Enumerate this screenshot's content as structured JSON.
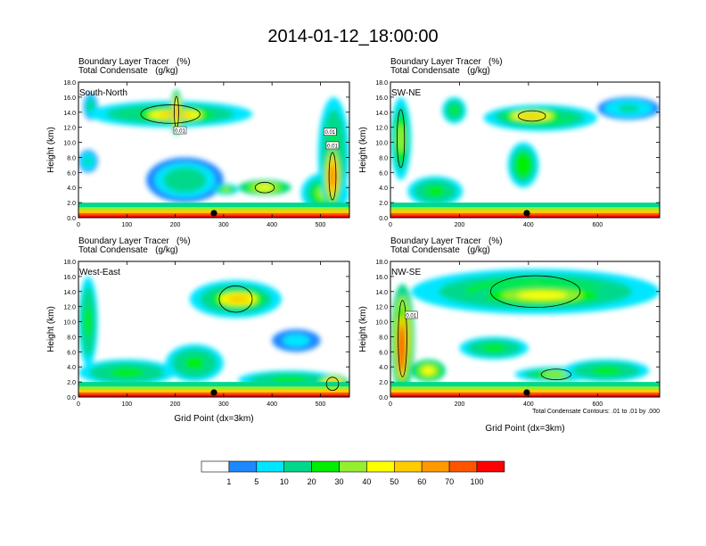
{
  "title": "2014-01-12_18:00:00",
  "panel_title_line1": "Boundary Layer Tracer   (%)",
  "panel_title_line2": "Total Condensate   (g/kg)",
  "xlabel": "Grid Point (dx=3km)",
  "ylabel": "Height (km)",
  "contour_note": "Total Condensate Contours: .01 to .01 by .000",
  "chart_data": [
    {
      "type": "heatmap",
      "label": "South-North",
      "xlim": [
        0,
        560
      ],
      "ylim": [
        0,
        18
      ],
      "xticks": [
        0,
        100,
        200,
        300,
        400,
        500
      ],
      "yticks": [
        0,
        2,
        4,
        6,
        8,
        10,
        12,
        14,
        16,
        18
      ],
      "ytick_labels": [
        "0.0",
        "2.0",
        "4.0",
        "6.0",
        "8.0",
        "10.0",
        "12.0",
        "14.0",
        "16.0",
        "18.0"
      ],
      "marker_x": 280,
      "contour_labels": [
        {
          "x": 210,
          "y": 11.6,
          "t": "0.01"
        },
        {
          "x": 520,
          "y": 11.4,
          "t": "0.01"
        },
        {
          "x": 525,
          "y": 9.6,
          "t": "0.01"
        }
      ],
      "blobs": [
        {
          "x": [
            10,
            40
          ],
          "y": [
            13,
            16.5
          ],
          "level": 15
        },
        {
          "x": [
            20,
            360
          ],
          "y": [
            12,
            15.5
          ],
          "level": 35
        },
        {
          "x": [
            100,
            300
          ],
          "y": [
            12.5,
            14.8
          ],
          "level": 50
        },
        {
          "x": [
            190,
            215
          ],
          "y": [
            11,
            17
          ],
          "level": 62
        },
        {
          "x": [
            140,
            300
          ],
          "y": [
            2,
            8
          ],
          "level": 15
        },
        {
          "x": [
            280,
            330
          ],
          "y": [
            3,
            4.5
          ],
          "level": 35
        },
        {
          "x": [
            330,
            440
          ],
          "y": [
            3,
            5
          ],
          "level": 40
        },
        {
          "x": [
            460,
            560
          ],
          "y": [
            0.5,
            6
          ],
          "level": 35
        },
        {
          "x": [
            495,
            560
          ],
          "y": [
            1,
            16
          ],
          "level": 22
        },
        {
          "x": [
            505,
            545
          ],
          "y": [
            1,
            10
          ],
          "level": 65
        },
        {
          "x": [
            0,
            40
          ],
          "y": [
            6,
            9
          ],
          "level": 12
        }
      ]
    },
    {
      "type": "heatmap",
      "label": "SW-NE",
      "xlim": [
        0,
        780
      ],
      "ylim": [
        0,
        18
      ],
      "xticks": [
        0,
        200,
        400,
        600
      ],
      "yticks": [
        0,
        2,
        4,
        6,
        8,
        10,
        12,
        14,
        16,
        18
      ],
      "ytick_labels": [
        "0.0",
        "2.0",
        "4.0",
        "6.0",
        "8.0",
        "10.0",
        "12.0",
        "14.0",
        "16.0",
        "18.0"
      ],
      "marker_x": 395,
      "contour_labels": [],
      "blobs": [
        {
          "x": [
            0,
            60
          ],
          "y": [
            5,
            16
          ],
          "level": 30
        },
        {
          "x": [
            150,
            220
          ],
          "y": [
            12.5,
            16
          ],
          "level": 22
        },
        {
          "x": [
            270,
            600
          ],
          "y": [
            11.5,
            15
          ],
          "level": 35
        },
        {
          "x": [
            300,
            520
          ],
          "y": [
            12.5,
            14.5
          ],
          "level": 50
        },
        {
          "x": [
            340,
            430
          ],
          "y": [
            4,
            10
          ],
          "level": 25
        },
        {
          "x": [
            50,
            210
          ],
          "y": [
            1.5,
            5.5
          ],
          "level": 22
        },
        {
          "x": [
            600,
            780
          ],
          "y": [
            13,
            16
          ],
          "level": 12
        }
      ]
    },
    {
      "type": "heatmap",
      "label": "West-East",
      "xlim": [
        0,
        560
      ],
      "ylim": [
        0,
        18
      ],
      "xticks": [
        0,
        100,
        200,
        300,
        400,
        500
      ],
      "yticks": [
        0,
        2,
        4,
        6,
        8,
        10,
        12,
        14,
        16,
        18
      ],
      "ytick_labels": [
        "0.0",
        "2.0",
        "4.0",
        "6.0",
        "8.0",
        "10.0",
        "12.0",
        "14.0",
        "16.0",
        "18.0"
      ],
      "marker_x": 280,
      "contour_labels": [],
      "blobs": [
        {
          "x": [
            0,
            40
          ],
          "y": [
            4,
            16
          ],
          "level": 20
        },
        {
          "x": [
            0,
            200
          ],
          "y": [
            1.5,
            5
          ],
          "level": 20
        },
        {
          "x": [
            180,
            300
          ],
          "y": [
            2,
            7
          ],
          "level": 22
        },
        {
          "x": [
            230,
            420
          ],
          "y": [
            10.5,
            15.5
          ],
          "level": 35
        },
        {
          "x": [
            260,
            400
          ],
          "y": [
            11.5,
            14.5
          ],
          "level": 50
        },
        {
          "x": [
            330,
            540
          ],
          "y": [
            1,
            3.5
          ],
          "level": 20
        },
        {
          "x": [
            490,
            560
          ],
          "y": [
            0.5,
            3
          ],
          "level": 62
        },
        {
          "x": [
            400,
            500
          ],
          "y": [
            6,
            9
          ],
          "level": 8
        }
      ]
    },
    {
      "type": "heatmap",
      "label": "NW-SE",
      "xlim": [
        0,
        780
      ],
      "ylim": [
        0,
        18
      ],
      "xticks": [
        0,
        200,
        400,
        600
      ],
      "yticks": [
        0,
        2,
        4,
        6,
        8,
        10,
        12,
        14,
        16,
        18
      ],
      "ytick_labels": [
        "0.0",
        "2.0",
        "4.0",
        "6.0",
        "8.0",
        "10.0",
        "12.0",
        "14.0",
        "16.0",
        "18.0"
      ],
      "marker_x": 395,
      "contour_labels": [
        {
          "x": 60,
          "y": 10.9,
          "t": "0.01"
        }
      ],
      "blobs": [
        {
          "x": [
            0,
            70
          ],
          "y": [
            0.5,
            15
          ],
          "level": 70
        },
        {
          "x": [
            15,
            50
          ],
          "y": [
            1,
            12
          ],
          "level": 92
        },
        {
          "x": [
            60,
            780
          ],
          "y": [
            11,
            17
          ],
          "level": 30
        },
        {
          "x": [
            230,
            650
          ],
          "y": [
            12,
            15
          ],
          "level": 45
        },
        {
          "x": [
            360,
            600
          ],
          "y": [
            2,
            4
          ],
          "level": 35
        },
        {
          "x": [
            60,
            160
          ],
          "y": [
            2,
            5
          ],
          "level": 45
        },
        {
          "x": [
            200,
            400
          ],
          "y": [
            5,
            8
          ],
          "level": 20
        },
        {
          "x": [
            500,
            750
          ],
          "y": [
            2,
            5
          ],
          "level": 20
        }
      ]
    }
  ],
  "colorbar": {
    "labels": [
      "1",
      "5",
      "10",
      "20",
      "30",
      "40",
      "50",
      "60",
      "70",
      "100"
    ],
    "colors": [
      "#ffffff",
      "#1e88ff",
      "#00e6ff",
      "#00d98c",
      "#00ee00",
      "#96ee30",
      "#ffff00",
      "#ffcc00",
      "#ff9900",
      "#ff5500",
      "#ff0000"
    ]
  }
}
